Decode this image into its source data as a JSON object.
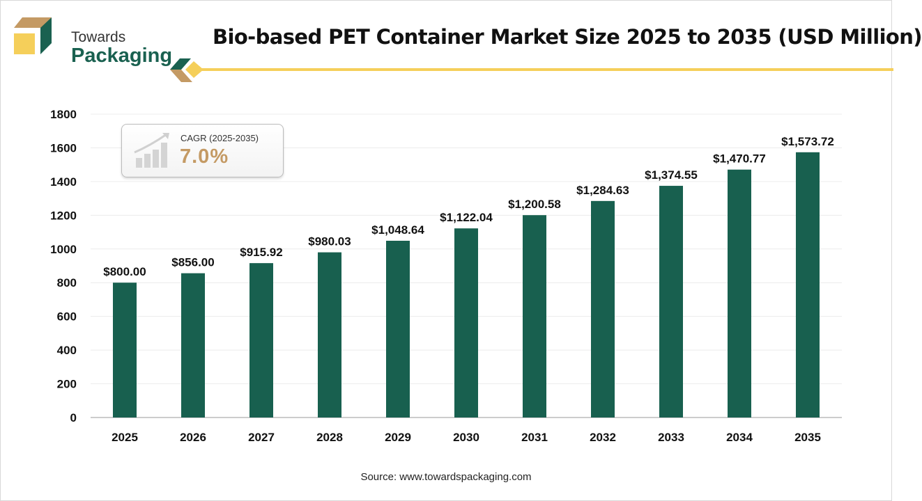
{
  "brand": {
    "line1": "Towards",
    "line2": "Packaging"
  },
  "colors": {
    "bar": "#18604f",
    "accent": "#f5cf5a",
    "brand_tan": "#c49a64",
    "brand_green": "#1a6150"
  },
  "cagr": {
    "label": "CAGR (2025-2035)",
    "value": "7.0%",
    "icon": "growth-chart-icon"
  },
  "source": "Source: www.towardspackaging.com",
  "chart_data": {
    "type": "bar",
    "title": "Bio-based PET Container Market Size 2025 to 2035 (USD Million)",
    "categories": [
      "2025",
      "2026",
      "2027",
      "2028",
      "2029",
      "2030",
      "2031",
      "2032",
      "2033",
      "2034",
      "2035"
    ],
    "values": [
      800.0,
      856.0,
      915.92,
      980.03,
      1048.64,
      1122.04,
      1200.58,
      1284.63,
      1374.55,
      1470.77,
      1573.72
    ],
    "data_labels": [
      "$800.00",
      "$856.00",
      "$915.92",
      "$980.03",
      "$1,048.64",
      "$1,122.04",
      "$1,200.58",
      "$1,284.63",
      "$1,374.55",
      "$1,470.77",
      "$1,573.72"
    ],
    "yticks": [
      0,
      200,
      400,
      600,
      800,
      1000,
      1200,
      1400,
      1600,
      1800
    ],
    "ylim": [
      0,
      1800
    ],
    "xlabel": "",
    "ylabel": "",
    "grid": true,
    "legend": "none"
  }
}
